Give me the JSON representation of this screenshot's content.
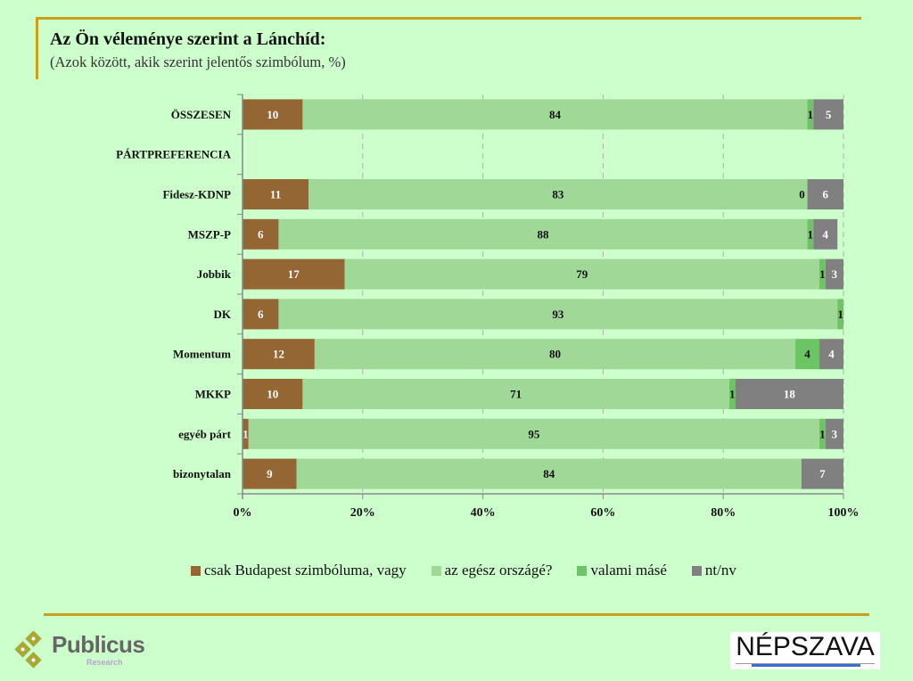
{
  "header": {
    "title": "Az Ön véleménye szerint a Lánchíd:",
    "subtitle": "(Azok között, akik szerint jelentős szimbólum, %)"
  },
  "chart_data": {
    "type": "bar",
    "orientation": "horizontal",
    "stacked": true,
    "title": "Az Ön véleménye szerint a Lánchíd:",
    "subtitle": "(Azok között, akik szerint jelentős szimbólum, %)",
    "categories": [
      "ÖSSZESEN",
      "PÁRTPREFERENCIA",
      "Fidesz-KDNP",
      "MSZP-P",
      "Jobbik",
      "DK",
      "Momentum",
      "MKKP",
      "egyéb párt",
      "bizonytalan"
    ],
    "series": [
      {
        "name": "csak Budapest szimbóluma, vagy",
        "color": "#936634",
        "label_color": "#ffffff",
        "values": [
          10,
          null,
          11,
          6,
          17,
          6,
          12,
          10,
          1,
          9
        ]
      },
      {
        "name": "az egész országé?",
        "color": "#a0d898",
        "label_color": "#111111",
        "values": [
          84,
          null,
          83,
          88,
          79,
          93,
          80,
          71,
          95,
          84
        ]
      },
      {
        "name": "valami másé",
        "color": "#6cc464",
        "label_color": "#111111",
        "values": [
          1,
          null,
          0,
          1,
          1,
          1,
          4,
          1,
          1,
          null
        ]
      },
      {
        "name": "nt/nv",
        "color": "#808080",
        "label_color": "#ffffff",
        "values": [
          5,
          null,
          6,
          4,
          3,
          null,
          4,
          18,
          3,
          7
        ]
      }
    ],
    "xlim": [
      0,
      100
    ],
    "xticks": [
      "0%",
      "20%",
      "40%",
      "60%",
      "80%",
      "100%"
    ],
    "xlabel": "",
    "ylabel": "",
    "grid": "vertical dashed",
    "legend_position": "bottom"
  },
  "logos": {
    "left": {
      "name": "Publicus",
      "sub": "Research"
    },
    "right": {
      "name": "NÉPSZAVA"
    }
  }
}
